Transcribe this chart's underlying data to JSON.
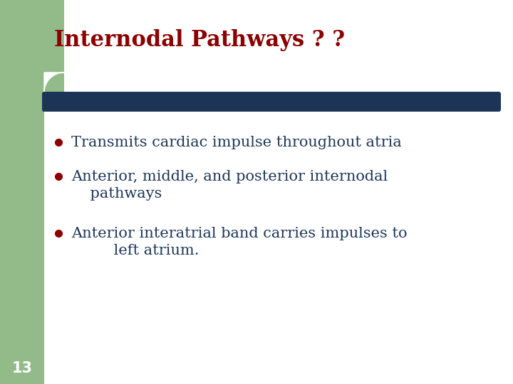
{
  "title": "Internodal Pathways ? ?",
  "title_color": "#8B0000",
  "title_fontsize": 22,
  "background_color": "#FFFFFF",
  "left_bar_color": "#93BB8A",
  "divider_color": "#1C3557",
  "bullet_color": "#8B0000",
  "bullet_text_color": "#1C3557",
  "bullet_fontsize": 15,
  "bullet1": "Transmits cardiac impulse throughout atria",
  "bullet2_line1": "Anterior, middle, and posterior internodal",
  "bullet2_line2": "    pathways",
  "bullet3_line1": "Anterior interatrial band carries impulses to",
  "bullet3_line2": "         left atrium.",
  "page_number": "13",
  "page_num_color": "#FFFFFF",
  "page_num_fontsize": 15
}
